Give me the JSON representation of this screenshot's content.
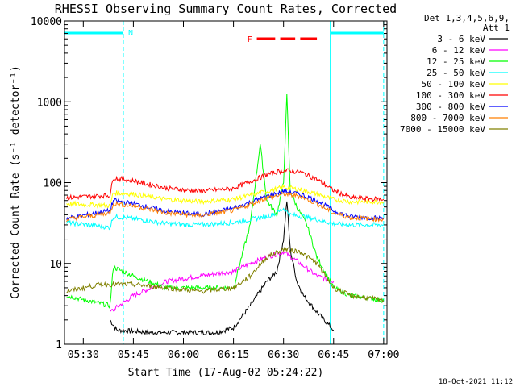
{
  "chart_data": {
    "type": "line",
    "title": "RHESSI Observing Summary Count Rates, Corrected",
    "xlabel": "Start Time (17-Aug-02 05:24:22)",
    "ylabel": "Corrected Count Rate (s⁻¹ detector⁻¹)",
    "y_scale": "log",
    "ylim": [
      1,
      10000
    ],
    "xlim": [
      "05:24:22",
      "07:01:00"
    ],
    "x_ticks": [
      "05:30",
      "05:45",
      "06:00",
      "06:15",
      "06:30",
      "06:45",
      "07:00"
    ],
    "y_ticks": [
      "1",
      "10",
      "100",
      "1000",
      "10000"
    ],
    "legend_header": [
      "Det 1,3,4,5,6,9,",
      "Att 1"
    ],
    "legend_position": "outside-right",
    "footer_date": "18-Oct-2021 11:12",
    "annotations": {
      "night_label": "N",
      "night_intervals": [
        [
          "05:24:22",
          "05:42:00"
        ],
        [
          "06:44:00",
          "07:00:00"
        ]
      ],
      "flare_label": "F",
      "flare_intervals": [
        [
          "06:22:00",
          "06:27:30"
        ],
        [
          "06:29:00",
          "06:33:30"
        ],
        [
          "06:35:00",
          "06:40:00"
        ]
      ]
    },
    "series": [
      {
        "name": "3 - 6 keV",
        "color": "#000000",
        "x": [
          "05:38",
          "05:40",
          "05:50",
          "06:00",
          "06:10",
          "06:15",
          "06:20",
          "06:25",
          "06:28",
          "06:30",
          "06:31",
          "06:32",
          "06:34",
          "06:36",
          "06:40",
          "06:45"
        ],
        "values": [
          2,
          1.5,
          1.4,
          1.4,
          1.4,
          1.6,
          3,
          6,
          8,
          20,
          60,
          15,
          6,
          4,
          2.5,
          1.5
        ]
      },
      {
        "name": "6 - 12 keV",
        "color": "#ff00ff",
        "x": [
          "05:38",
          "05:45",
          "05:55",
          "06:05",
          "06:15",
          "06:20",
          "06:25",
          "06:30",
          "06:35",
          "06:40",
          "06:45"
        ],
        "values": [
          2.5,
          4,
          6,
          7,
          8,
          10,
          12,
          14,
          10,
          7,
          6
        ]
      },
      {
        "name": "12 - 25 keV",
        "color": "#00ff00",
        "x": [
          "05:25",
          "05:38",
          "05:39",
          "05:45",
          "05:55",
          "06:05",
          "06:15",
          "06:20",
          "06:23",
          "06:25",
          "06:28",
          "06:30",
          "06:31",
          "06:32",
          "06:34",
          "06:37",
          "06:40",
          "06:45",
          "06:50",
          "07:00"
        ],
        "values": [
          4,
          3,
          9,
          7,
          5,
          5,
          5,
          30,
          300,
          60,
          40,
          100,
          1200,
          80,
          50,
          30,
          12,
          5,
          4,
          3.5
        ]
      },
      {
        "name": "25 - 50 keV",
        "color": "#00ffff",
        "x": [
          "05:25",
          "05:38",
          "05:39",
          "05:45",
          "05:55",
          "06:05",
          "06:15",
          "06:25",
          "06:28",
          "06:30",
          "06:32",
          "06:36",
          "06:40",
          "06:45",
          "06:50",
          "07:00"
        ],
        "values": [
          32,
          28,
          38,
          36,
          31,
          30,
          32,
          38,
          42,
          48,
          40,
          38,
          35,
          31,
          30,
          30
        ]
      },
      {
        "name": "50 - 100 keV",
        "color": "#ffff00",
        "x": [
          "05:25",
          "05:38",
          "05:39",
          "05:45",
          "05:55",
          "06:05",
          "06:15",
          "06:25",
          "06:30",
          "06:35",
          "06:40",
          "06:45",
          "06:50",
          "07:00"
        ],
        "values": [
          55,
          52,
          75,
          72,
          62,
          58,
          62,
          78,
          88,
          82,
          72,
          62,
          58,
          58
        ]
      },
      {
        "name": "100 - 300 keV",
        "color": "#ff0000",
        "x": [
          "05:25",
          "05:38",
          "05:39",
          "05:45",
          "05:55",
          "06:05",
          "06:15",
          "06:25",
          "06:30",
          "06:35",
          "06:40",
          "06:45",
          "06:50",
          "07:00"
        ],
        "values": [
          65,
          70,
          115,
          105,
          85,
          78,
          85,
          125,
          142,
          135,
          110,
          80,
          65,
          62
        ]
      },
      {
        "name": "300 - 800 keV",
        "color": "#0000ff",
        "x": [
          "05:25",
          "05:38",
          "05:39",
          "05:45",
          "05:55",
          "06:05",
          "06:15",
          "06:25",
          "06:30",
          "06:35",
          "06:40",
          "06:45",
          "06:50",
          "07:00"
        ],
        "values": [
          36,
          45,
          60,
          55,
          44,
          40,
          48,
          68,
          78,
          72,
          60,
          45,
          38,
          36
        ]
      },
      {
        "name": "800 - 7000 keV",
        "color": "#ff7f00",
        "x": [
          "05:25",
          "05:38",
          "05:39",
          "05:45",
          "05:55",
          "06:05",
          "06:15",
          "06:25",
          "06:30",
          "06:35",
          "06:40",
          "06:45",
          "06:50",
          "07:00"
        ],
        "values": [
          35,
          42,
          55,
          52,
          42,
          39,
          45,
          65,
          72,
          68,
          55,
          42,
          37,
          35
        ]
      },
      {
        "name": "7000 - 15000 keV",
        "color": "#808000",
        "x": [
          "05:25",
          "05:35",
          "05:45",
          "05:55",
          "06:05",
          "06:15",
          "06:20",
          "06:25",
          "06:30",
          "06:35",
          "06:40",
          "06:45",
          "06:50",
          "07:00"
        ],
        "values": [
          4.5,
          5.5,
          5.5,
          5,
          4.5,
          5,
          7,
          12,
          15,
          14,
          10,
          5,
          4,
          3.5
        ]
      }
    ]
  }
}
